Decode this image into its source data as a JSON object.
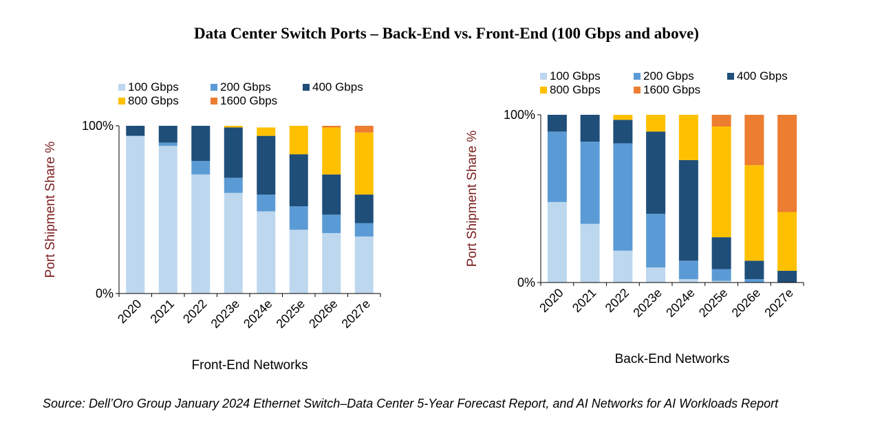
{
  "title": "Data Center Switch Ports – Back-End vs. Front-End (100 Gbps and above)",
  "source": "Source: Dell’Oro Group January 2024 Ethernet Switch–Data Center 5-Year Forecast Report, and AI Networks for AI Workloads Report",
  "chart_data": [
    {
      "type": "bar",
      "stacked": true,
      "title": "",
      "xlabel": "Front-End Networks",
      "ylabel": "Port  Shipment Share %",
      "ylim": [
        0,
        100
      ],
      "yticks": [
        "0%",
        "100%"
      ],
      "legend": "top",
      "categories": [
        "2020",
        "2021",
        "2022",
        "2023e",
        "2024e",
        "2025e",
        "2026e",
        "2027e"
      ],
      "series": [
        {
          "name": "100 Gbps",
          "color": "#bdd7ee",
          "values": [
            94,
            88,
            71,
            60,
            49,
            38,
            36,
            34
          ]
        },
        {
          "name": "200 Gbps",
          "color": "#5b9bd5",
          "values": [
            0,
            2,
            8,
            9,
            10,
            14,
            11,
            8
          ]
        },
        {
          "name": "400 Gbps",
          "color": "#1f4e79",
          "values": [
            6,
            10,
            21,
            30,
            35,
            31,
            24,
            17
          ]
        },
        {
          "name": "800 Gbps",
          "color": "#ffc000",
          "values": [
            0,
            0,
            0,
            1,
            5,
            17,
            28,
            37
          ]
        },
        {
          "name": "1600 Gbps",
          "color": "#ed7d31",
          "values": [
            0,
            0,
            0,
            0,
            0,
            0,
            1,
            4
          ]
        }
      ]
    },
    {
      "type": "bar",
      "stacked": true,
      "title": "",
      "xlabel": "Back-End Networks",
      "ylabel": "Port  Shipment Share %",
      "ylim": [
        0,
        100
      ],
      "yticks": [
        "0%",
        "100%"
      ],
      "legend": "top",
      "categories": [
        "2020",
        "2021",
        "2022",
        "2023e",
        "2024e",
        "2025e",
        "2026e",
        "2027e"
      ],
      "series": [
        {
          "name": "100 Gbps",
          "color": "#bdd7ee",
          "values": [
            48,
            35,
            19,
            9,
            2,
            1,
            0,
            0
          ]
        },
        {
          "name": "200 Gbps",
          "color": "#5b9bd5",
          "values": [
            42,
            49,
            64,
            32,
            11,
            7,
            2,
            0
          ]
        },
        {
          "name": "400 Gbps",
          "color": "#1f4e79",
          "values": [
            10,
            16,
            14,
            49,
            60,
            19,
            11,
            7
          ]
        },
        {
          "name": "800 Gbps",
          "color": "#ffc000",
          "values": [
            0,
            0,
            3,
            10,
            27,
            66,
            57,
            35
          ]
        },
        {
          "name": "1600 Gbps",
          "color": "#ed7d31",
          "values": [
            0,
            0,
            0,
            0,
            0,
            7,
            30,
            58
          ]
        }
      ]
    }
  ]
}
